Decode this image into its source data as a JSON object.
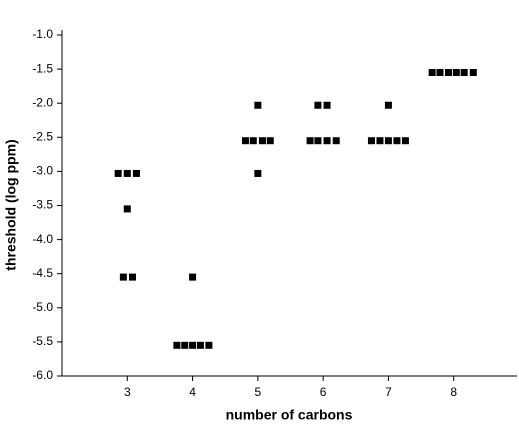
{
  "chart_data": {
    "type": "scatter",
    "xlabel": "number of carbons",
    "ylabel": "threshold (log ppm)",
    "xlim": [
      2,
      9
    ],
    "xticks": [
      3,
      4,
      5,
      6,
      7,
      8
    ],
    "ylim": [
      -6,
      -1
    ],
    "yticks": [
      {
        "value": -6,
        "label": "-6.0"
      },
      {
        "value": -5.5,
        "label": "-5.5"
      },
      {
        "value": -5,
        "label": "-5.0"
      },
      {
        "value": -4.5,
        "label": "-4.5"
      },
      {
        "value": -4,
        "label": "-4.0"
      },
      {
        "value": -3.5,
        "label": "-3.5"
      },
      {
        "value": -3,
        "label": "-3.0"
      },
      {
        "value": -2.5,
        "label": "-2.5"
      },
      {
        "value": -2,
        "label": "-2.0"
      },
      {
        "value": -1.5,
        "label": "-1.5"
      },
      {
        "value": -1,
        "label": "-1.0"
      }
    ],
    "color": "#000000",
    "x": [
      2.86,
      3.0,
      3.14,
      3.0,
      2.94,
      3.08,
      4.0,
      3.76,
      3.88,
      4.0,
      4.12,
      4.25,
      5.0,
      4.81,
      4.93,
      5.07,
      5.19,
      5.0,
      5.92,
      6.06,
      5.8,
      5.92,
      6.06,
      6.2,
      7.0,
      6.74,
      6.87,
      7.0,
      7.13,
      7.26,
      7.67,
      7.79,
      7.92,
      8.04,
      8.16,
      8.3
    ],
    "values": [
      -3.03,
      -3.03,
      -3.03,
      -3.55,
      -4.55,
      -4.55,
      -4.55,
      -5.55,
      -5.55,
      -5.55,
      -5.55,
      -5.55,
      -2.03,
      -2.55,
      -2.55,
      -2.55,
      -2.55,
      -3.03,
      -2.03,
      -2.03,
      -2.55,
      -2.55,
      -2.55,
      -2.55,
      -2.03,
      -2.55,
      -2.55,
      -2.55,
      -2.55,
      -2.55,
      -1.55,
      -1.55,
      -1.55,
      -1.55,
      -1.55,
      -1.55
    ]
  }
}
